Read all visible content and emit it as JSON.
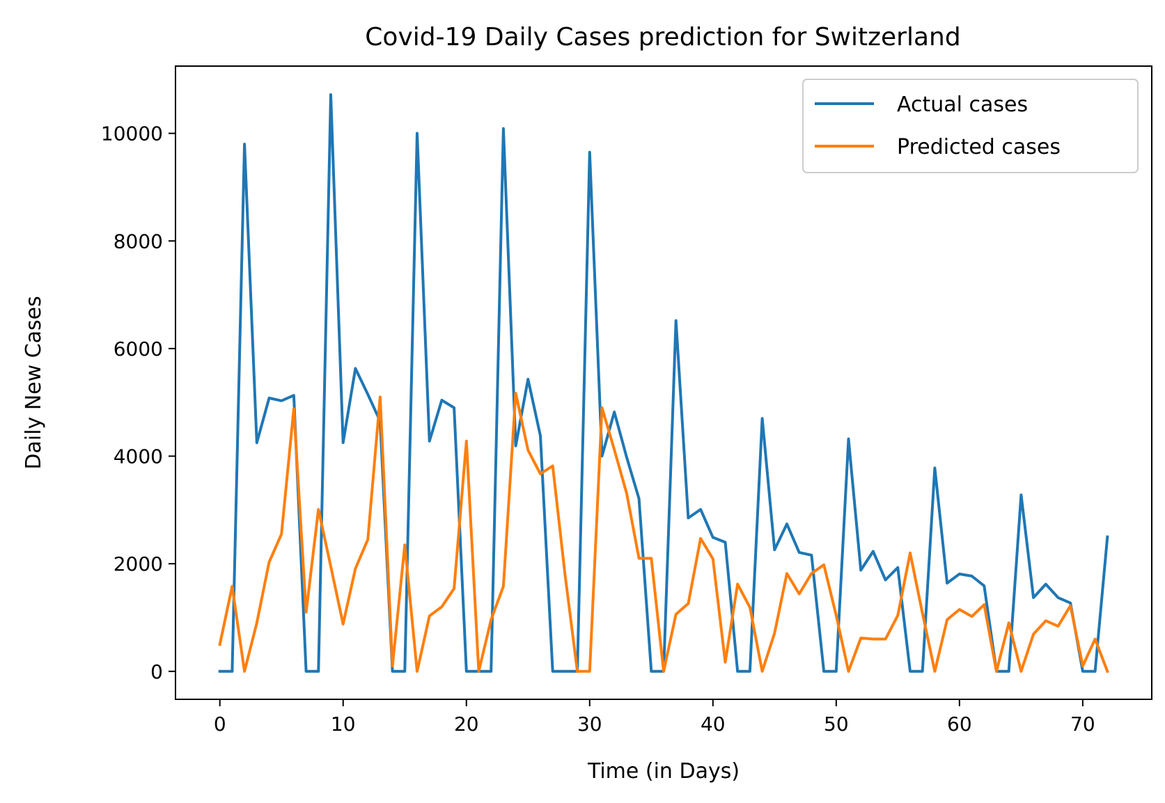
{
  "chart_data": {
    "type": "line",
    "title": "Covid-19 Daily Cases prediction for Switzerland",
    "xlabel": "Time (in Days)",
    "ylabel": "Daily New Cases",
    "xlim": [
      -3.6,
      75.6
    ],
    "ylim": [
      -520,
      11250
    ],
    "xticks": [
      0,
      10,
      20,
      30,
      40,
      50,
      60,
      70
    ],
    "yticks": [
      0,
      2000,
      4000,
      6000,
      8000,
      10000
    ],
    "grid": false,
    "legend": "top-right",
    "series": [
      {
        "name": "Actual cases",
        "color": "#1f77b4",
        "x": [
          0,
          1,
          2,
          3,
          4,
          5,
          6,
          7,
          8,
          9,
          10,
          11,
          12,
          13,
          14,
          15,
          16,
          17,
          18,
          19,
          20,
          21,
          22,
          23,
          24,
          25,
          26,
          27,
          28,
          29,
          30,
          31,
          32,
          33,
          34,
          35,
          36,
          37,
          38,
          39,
          40,
          41,
          42,
          43,
          44,
          45,
          46,
          47,
          48,
          49,
          50,
          51,
          52,
          53,
          54,
          55,
          56,
          57,
          58,
          59,
          60,
          61,
          62,
          63,
          64,
          65,
          66,
          67,
          68,
          69,
          70,
          71,
          72
        ],
        "values": [
          0,
          0,
          9800,
          4250,
          5080,
          5030,
          5130,
          0,
          0,
          10720,
          4250,
          5630,
          5150,
          4650,
          0,
          0,
          10000,
          4280,
          5040,
          4900,
          0,
          0,
          0,
          10090,
          4190,
          5430,
          4380,
          0,
          0,
          0,
          9650,
          4000,
          4820,
          3980,
          3210,
          0,
          0,
          6520,
          2850,
          3010,
          2490,
          2400,
          0,
          0,
          4700,
          2260,
          2740,
          2210,
          2160,
          0,
          0,
          4320,
          1880,
          2230,
          1700,
          1930,
          0,
          0,
          3780,
          1640,
          1810,
          1770,
          1590,
          0,
          0,
          3280,
          1370,
          1620,
          1370,
          1270,
          0,
          0,
          2500
        ]
      },
      {
        "name": "Predicted cases",
        "color": "#ff7f0e",
        "x": [
          0,
          1,
          2,
          3,
          4,
          5,
          6,
          7,
          8,
          9,
          10,
          11,
          12,
          13,
          14,
          15,
          16,
          17,
          18,
          19,
          20,
          21,
          22,
          23,
          24,
          25,
          26,
          27,
          28,
          29,
          30,
          31,
          32,
          33,
          34,
          35,
          36,
          37,
          38,
          39,
          40,
          41,
          42,
          43,
          44,
          45,
          46,
          47,
          48,
          49,
          50,
          51,
          52,
          53,
          54,
          55,
          56,
          57,
          58,
          59,
          60,
          61,
          62,
          63,
          64,
          65,
          66,
          67,
          68,
          69,
          70,
          71,
          72
        ],
        "values": [
          500,
          1580,
          0,
          900,
          2030,
          2550,
          4880,
          1100,
          3010,
          1950,
          880,
          1910,
          2450,
          5100,
          100,
          2350,
          0,
          1030,
          1200,
          1540,
          4280,
          0,
          960,
          1580,
          5170,
          4110,
          3670,
          3820,
          1800,
          0,
          0,
          4900,
          4120,
          3310,
          2100,
          2100,
          0,
          1060,
          1260,
          2470,
          2090,
          170,
          1620,
          1190,
          0,
          710,
          1820,
          1440,
          1820,
          1980,
          1040,
          0,
          620,
          600,
          600,
          1040,
          2200,
          1080,
          0,
          960,
          1150,
          1020,
          1240,
          0,
          900,
          0,
          690,
          940,
          840,
          1220,
          100,
          600,
          0
        ]
      }
    ]
  }
}
